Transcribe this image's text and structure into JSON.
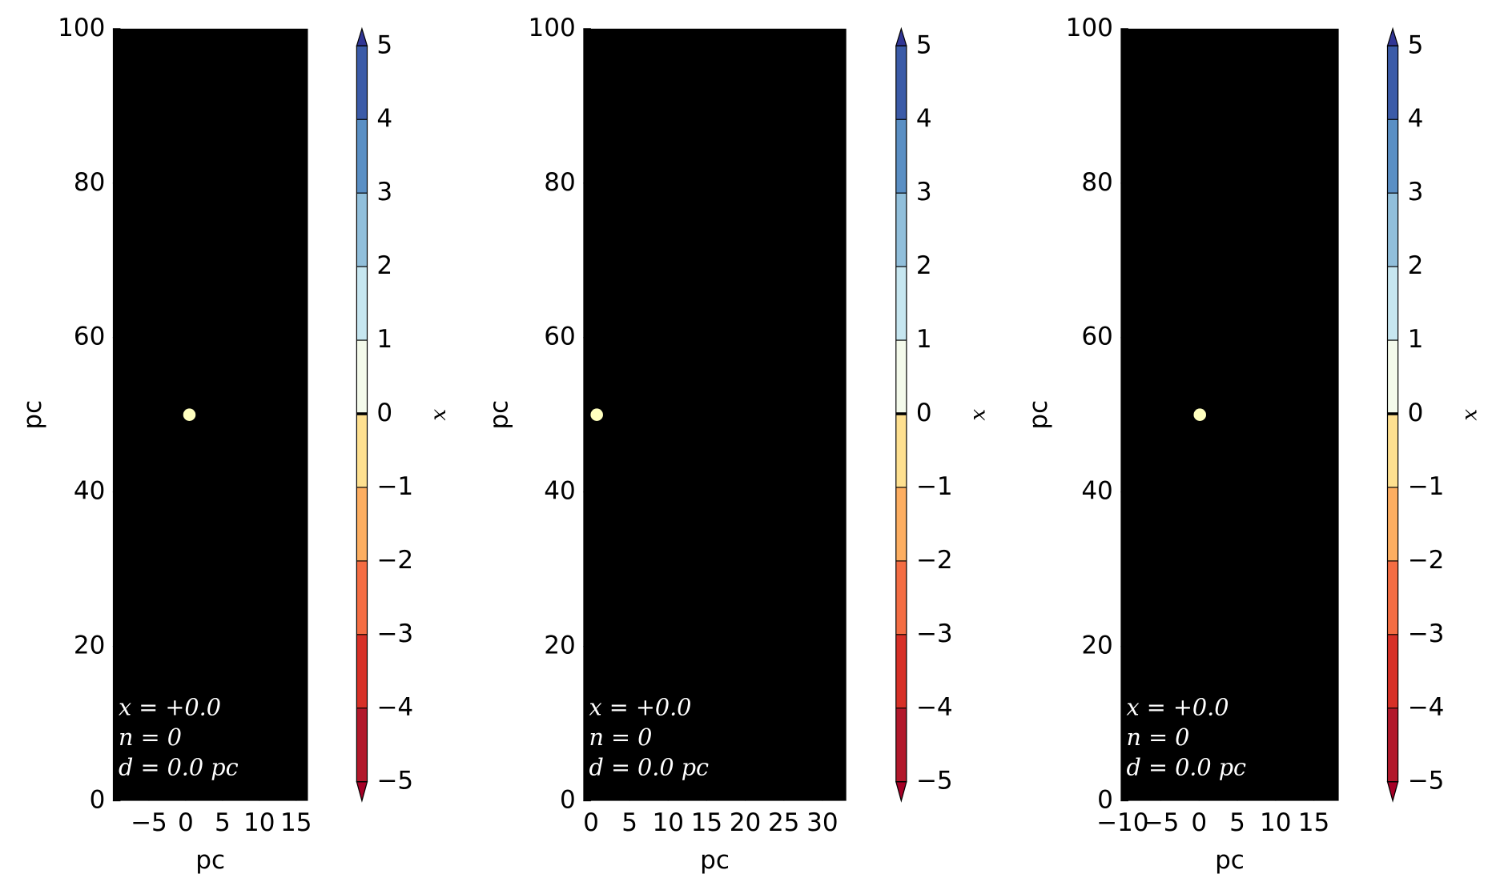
{
  "chart_data": [
    {
      "type": "scatter",
      "x": [
        0.5
      ],
      "y": [
        50
      ],
      "color": "#ffffbf",
      "background": "#000000",
      "xlabel": "pc",
      "ylabel": "pc",
      "xlim": [
        -9.9,
        16.6
      ],
      "ylim": [
        0,
        100
      ],
      "xticks": [
        {
          "value": -5,
          "label": "−5"
        },
        0,
        5,
        10,
        15
      ],
      "yticks": [
        0,
        20,
        40,
        60,
        80,
        100
      ],
      "annotations": [
        "x = +0.0",
        "n = 0",
        "d = 0.0 pc"
      ],
      "colorbar": {
        "label": "x",
        "lim": [
          -5,
          5
        ],
        "ticks": [
          {
            "value": -5,
            "label": "−5"
          },
          {
            "value": -4,
            "label": "−4"
          },
          {
            "value": -3,
            "label": "−3"
          },
          {
            "value": -2,
            "label": "−2"
          },
          {
            "value": -1,
            "label": "−1"
          },
          0,
          1,
          2,
          3,
          4,
          5
        ],
        "colors": [
          "#b2182b",
          "#d73027",
          "#f46d43",
          "#fdae61",
          "#fee090",
          "#f4faeb",
          "#c6e6f0",
          "#91bfdb",
          "#5a8fc4",
          "#3b5ba8"
        ],
        "under": "#a50026",
        "over": "#313695"
      }
    },
    {
      "type": "scatter",
      "x": [
        0.75
      ],
      "y": [
        50
      ],
      "color": "#ffffbf",
      "background": "#000000",
      "xlabel": "pc",
      "ylabel": "pc",
      "xlim": [
        -1,
        33.1
      ],
      "ylim": [
        0,
        100
      ],
      "xticks": [
        0,
        5,
        10,
        15,
        20,
        25,
        30
      ],
      "yticks": [
        0,
        20,
        40,
        60,
        80,
        100
      ],
      "annotations": [
        "x = +0.0",
        "n = 0",
        "d = 0.0 pc"
      ],
      "colorbar": {
        "label": "x",
        "lim": [
          -5,
          5
        ],
        "ticks": [
          {
            "value": -5,
            "label": "−5"
          },
          {
            "value": -4,
            "label": "−4"
          },
          {
            "value": -3,
            "label": "−3"
          },
          {
            "value": -2,
            "label": "−2"
          },
          {
            "value": -1,
            "label": "−1"
          },
          0,
          1,
          2,
          3,
          4,
          5
        ],
        "colors": [
          "#b2182b",
          "#d73027",
          "#f46d43",
          "#fdae61",
          "#fee090",
          "#f4faeb",
          "#c6e6f0",
          "#91bfdb",
          "#5a8fc4",
          "#3b5ba8"
        ],
        "under": "#a50026",
        "over": "#313695"
      }
    },
    {
      "type": "scatter",
      "x": [
        0.1
      ],
      "y": [
        50
      ],
      "color": "#ffffbf",
      "background": "#000000",
      "xlabel": "pc",
      "ylabel": "pc",
      "xlim": [
        -10.25,
        18.25
      ],
      "ylim": [
        0,
        100
      ],
      "xticks": [
        {
          "value": -10,
          "label": "−10"
        },
        {
          "value": -5,
          "label": "−5"
        },
        0,
        5,
        10,
        15
      ],
      "yticks": [
        0,
        20,
        40,
        60,
        80,
        100
      ],
      "annotations": [
        "x = +0.0",
        "n = 0",
        "d = 0.0 pc"
      ],
      "colorbar": {
        "label": "x",
        "lim": [
          -5,
          5
        ],
        "ticks": [
          {
            "value": -5,
            "label": "−5"
          },
          {
            "value": -4,
            "label": "−4"
          },
          {
            "value": -3,
            "label": "−3"
          },
          {
            "value": -2,
            "label": "−2"
          },
          {
            "value": -1,
            "label": "−1"
          },
          0,
          1,
          2,
          3,
          4,
          5
        ],
        "colors": [
          "#b2182b",
          "#d73027",
          "#f46d43",
          "#fdae61",
          "#fee090",
          "#f4faeb",
          "#c6e6f0",
          "#91bfdb",
          "#5a8fc4",
          "#3b5ba8"
        ],
        "under": "#a50026",
        "over": "#313695"
      }
    }
  ]
}
